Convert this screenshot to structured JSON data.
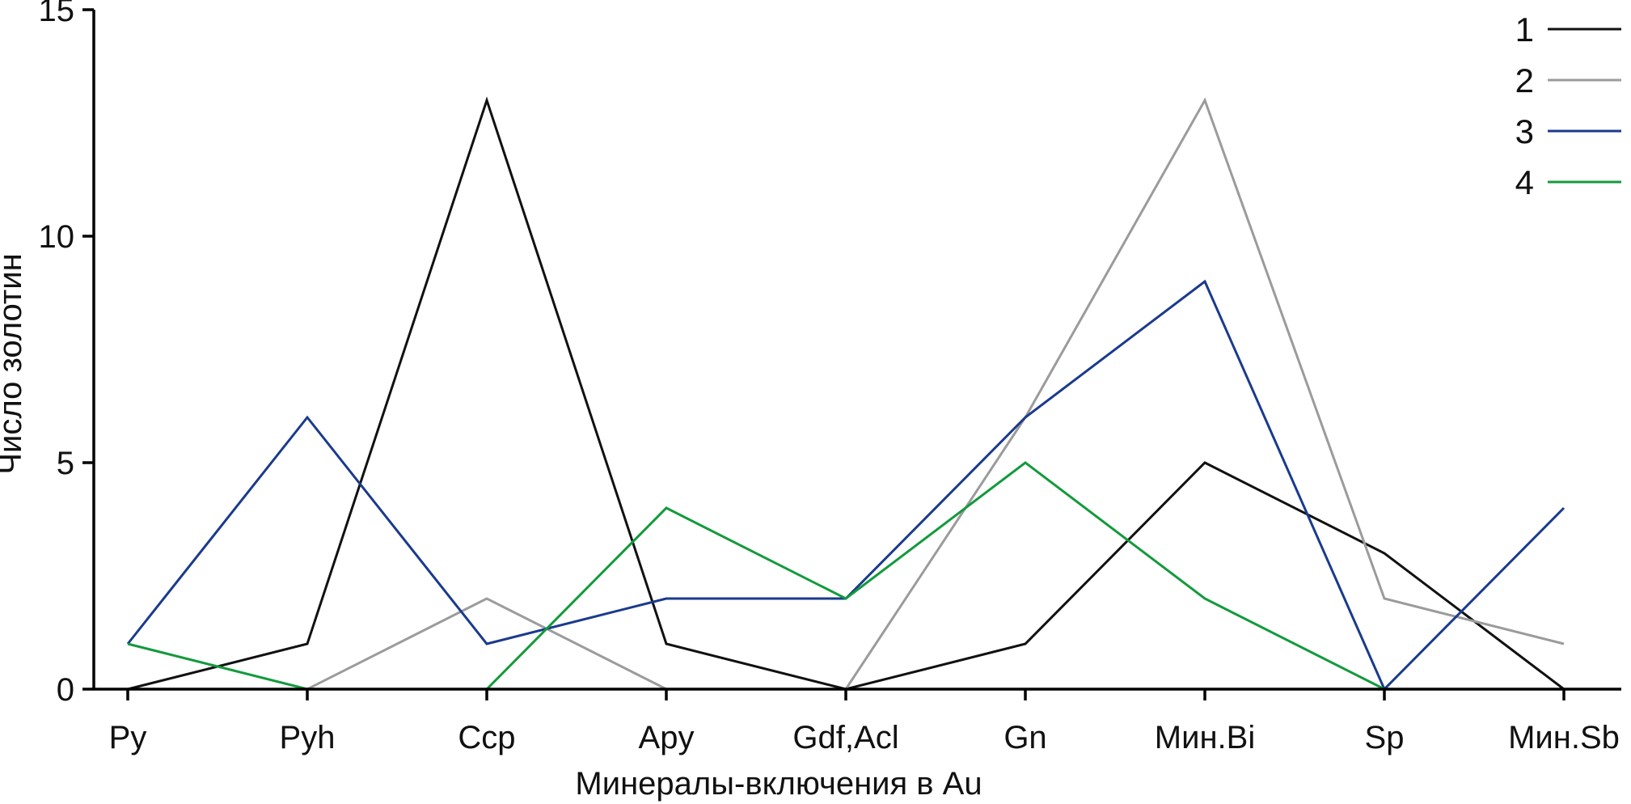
{
  "chart_data": {
    "type": "line",
    "xlabel": "Минералы-включения в Au",
    "ylabel": "Число золотин",
    "categories": [
      "Py",
      "Pyh",
      "Ccp",
      "Apy",
      "Gdf,Acl",
      "Gn",
      "Мин.Bi",
      "Sp",
      "Мин.Sb"
    ],
    "ylim": [
      0,
      15
    ],
    "yticks": [
      0,
      5,
      10,
      15
    ],
    "yticks_labels": [
      "0",
      "5",
      "10",
      "15"
    ],
    "grid": false,
    "legend_position": "top-right",
    "series": [
      {
        "name": "1",
        "color": "#111111",
        "values": [
          0,
          1,
          13,
          1,
          0,
          1,
          5,
          3,
          0
        ]
      },
      {
        "name": "2",
        "color": "#9b9b9b",
        "values": [
          0,
          0,
          2,
          0,
          0,
          6,
          13,
          2,
          1
        ]
      },
      {
        "name": "3",
        "color": "#1a3a8c",
        "values": [
          1,
          6,
          1,
          2,
          2,
          6,
          9,
          0,
          4
        ]
      },
      {
        "name": "4",
        "color": "#139a3c",
        "values": [
          1,
          0,
          0,
          4,
          2,
          5,
          2,
          0,
          0
        ]
      }
    ]
  }
}
